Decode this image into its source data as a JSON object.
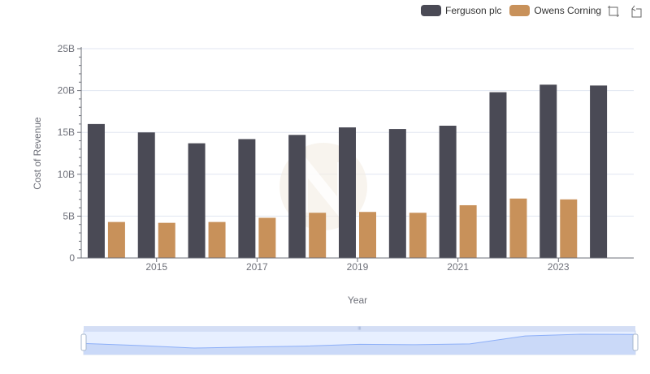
{
  "chart_data": {
    "type": "bar",
    "x": [
      2014,
      2015,
      2016,
      2017,
      2018,
      2019,
      2020,
      2021,
      2022,
      2023,
      2024
    ],
    "xticks": [
      "2015",
      "2017",
      "2019",
      "2021",
      "2023"
    ],
    "yticks": [
      "0",
      "5B",
      "10B",
      "15B",
      "20B",
      "25B"
    ],
    "series": [
      {
        "name": "Ferguson plc",
        "color": "#4a4a55",
        "values": [
          16.0,
          15.0,
          13.7,
          14.2,
          14.7,
          15.6,
          15.4,
          15.8,
          19.8,
          20.7,
          20.6
        ]
      },
      {
        "name": "Owens Corning",
        "color": "#c8915a",
        "values": [
          4.3,
          4.2,
          4.3,
          4.8,
          5.4,
          5.5,
          5.4,
          6.3,
          7.1,
          7.0,
          null
        ]
      }
    ],
    "xlabel": "Year",
    "ylabel": "Cost of Revenue",
    "ylim": [
      0,
      25
    ],
    "unit": "B",
    "grid": true,
    "legend_position": "top-right"
  },
  "toolbox": {
    "icons": [
      "zoom-icon",
      "restore-icon"
    ]
  },
  "data_zoom": {
    "range_start_percent": 0,
    "range_end_percent": 100,
    "handle_label": "III"
  }
}
